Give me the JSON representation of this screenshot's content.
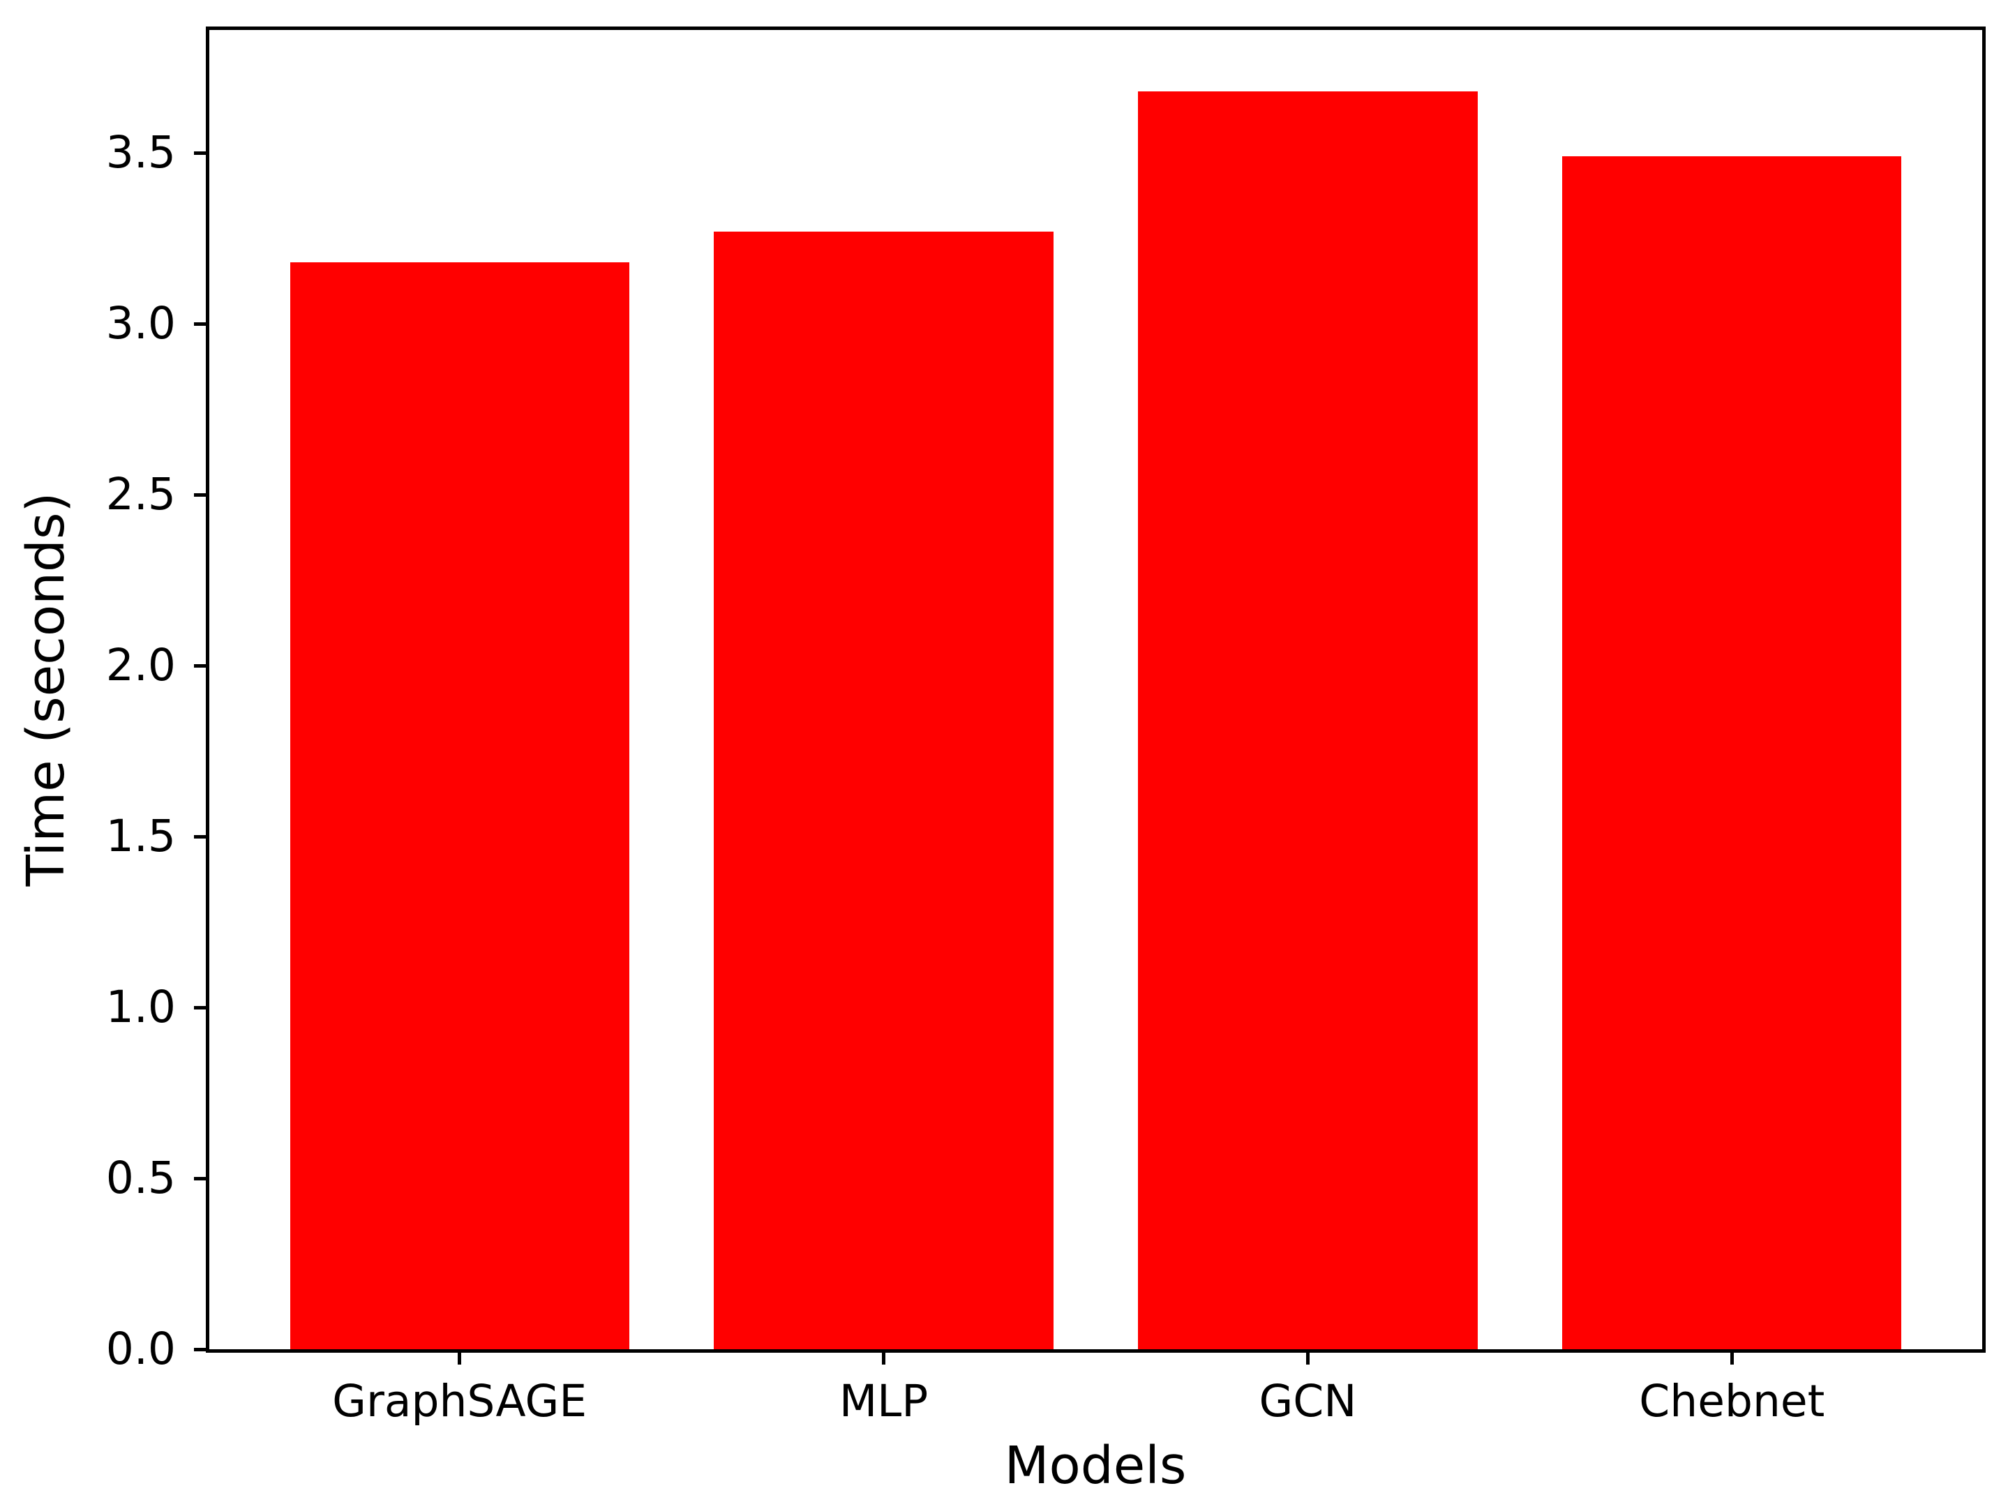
{
  "chart_data": {
    "type": "bar",
    "title": "",
    "xlabel": "Models",
    "ylabel": "Time (seconds)",
    "categories": [
      "GraphSAGE",
      "MLP",
      "GCN",
      "Chebnet"
    ],
    "values": [
      3.18,
      3.27,
      3.68,
      3.49
    ],
    "ytick_labels": [
      "0.0",
      "0.5",
      "1.0",
      "1.5",
      "2.0",
      "2.5",
      "3.0",
      "3.5"
    ],
    "ylim": [
      0,
      3.86
    ],
    "xlim": [
      -0.59,
      3.59
    ],
    "bar_width": 0.8,
    "bar_color": "#ff0000",
    "spine_color": "#000000",
    "text_color": "#000000",
    "background_color": "#ffffff",
    "grid": false,
    "legend": null
  }
}
